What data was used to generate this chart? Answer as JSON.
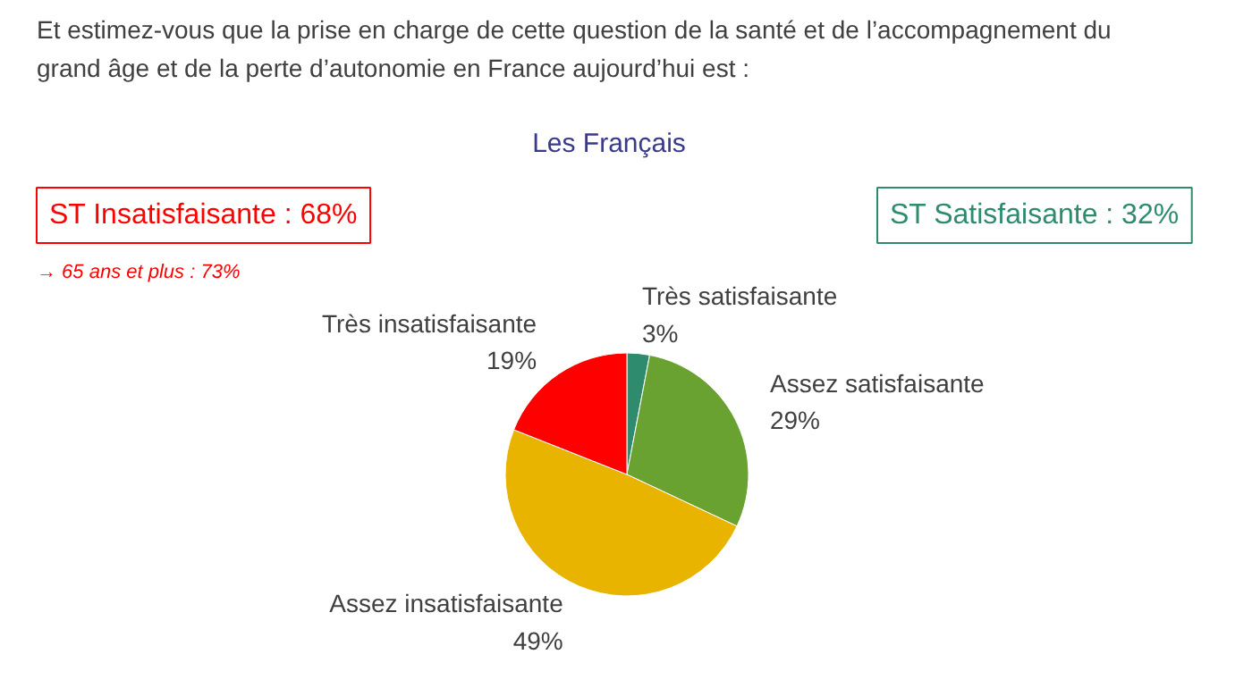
{
  "chart_data": {
    "type": "pie",
    "title": "Et estimez-vous que la prise en charge de cette question de la santé et de l’accompagnement du grand âge et de la perte d’autonomie en France aujourd’hui est :",
    "subtitle": "Les Français",
    "categories": [
      "Très satisfaisante",
      "Assez satisfaisante",
      "Assez insatisfaisante",
      "Très insatisfaisante"
    ],
    "values": [
      3,
      29,
      49,
      19
    ],
    "colors": [
      "#2e8b6e",
      "#6aa232",
      "#e8b400",
      "#ff0000"
    ],
    "value_labels": [
      "3%",
      "29%",
      "49%",
      "19%"
    ],
    "annotations": [
      "ST Insatisfaisante : 68%",
      "→ 65 ans et plus : 73%",
      "ST Satisfaisante : 32%"
    ]
  }
}
